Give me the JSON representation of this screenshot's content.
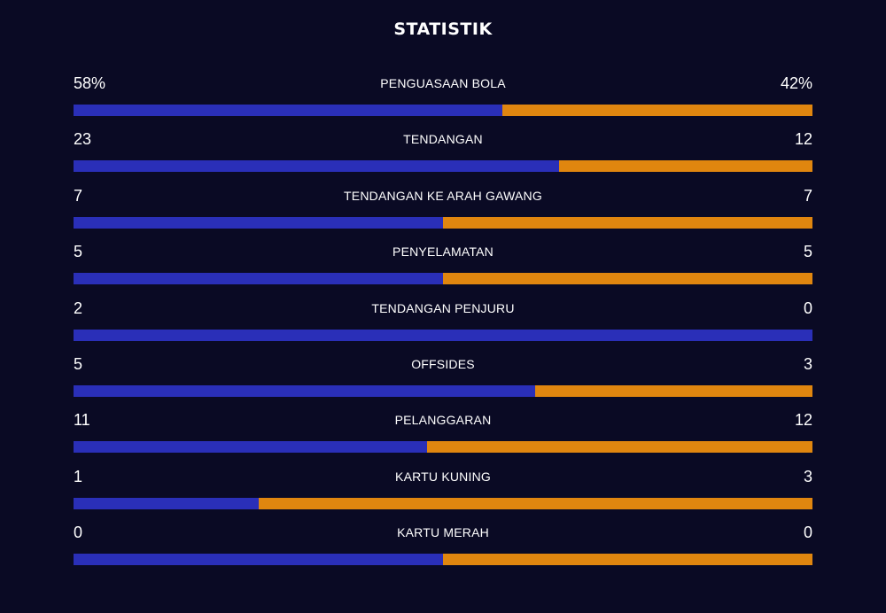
{
  "title": "STATISTIK",
  "colors": {
    "background": "#0a0a24",
    "home": "#2a2fb8",
    "away": "#e0860f",
    "text": "#ffffff"
  },
  "stats": [
    {
      "label": "PENGUASAAN BOLA",
      "home": "58%",
      "away": "42%",
      "home_share": 0.58
    },
    {
      "label": "TENDANGAN",
      "home": "23",
      "away": "12",
      "home_share": 0.657
    },
    {
      "label": "TENDANGAN KE ARAH GAWANG",
      "home": "7",
      "away": "7",
      "home_share": 0.5
    },
    {
      "label": "PENYELAMATAN",
      "home": "5",
      "away": "5",
      "home_share": 0.5
    },
    {
      "label": "TENDANGAN PENJURU",
      "home": "2",
      "away": "0",
      "home_share": 1.0
    },
    {
      "label": "OFFSIDES",
      "home": "5",
      "away": "3",
      "home_share": 0.625
    },
    {
      "label": "PELANGGARAN",
      "home": "11",
      "away": "12",
      "home_share": 0.478
    },
    {
      "label": "KARTU KUNING",
      "home": "1",
      "away": "3",
      "home_share": 0.25
    },
    {
      "label": "KARTU MERAH",
      "home": "0",
      "away": "0",
      "home_share": 0.5
    }
  ]
}
